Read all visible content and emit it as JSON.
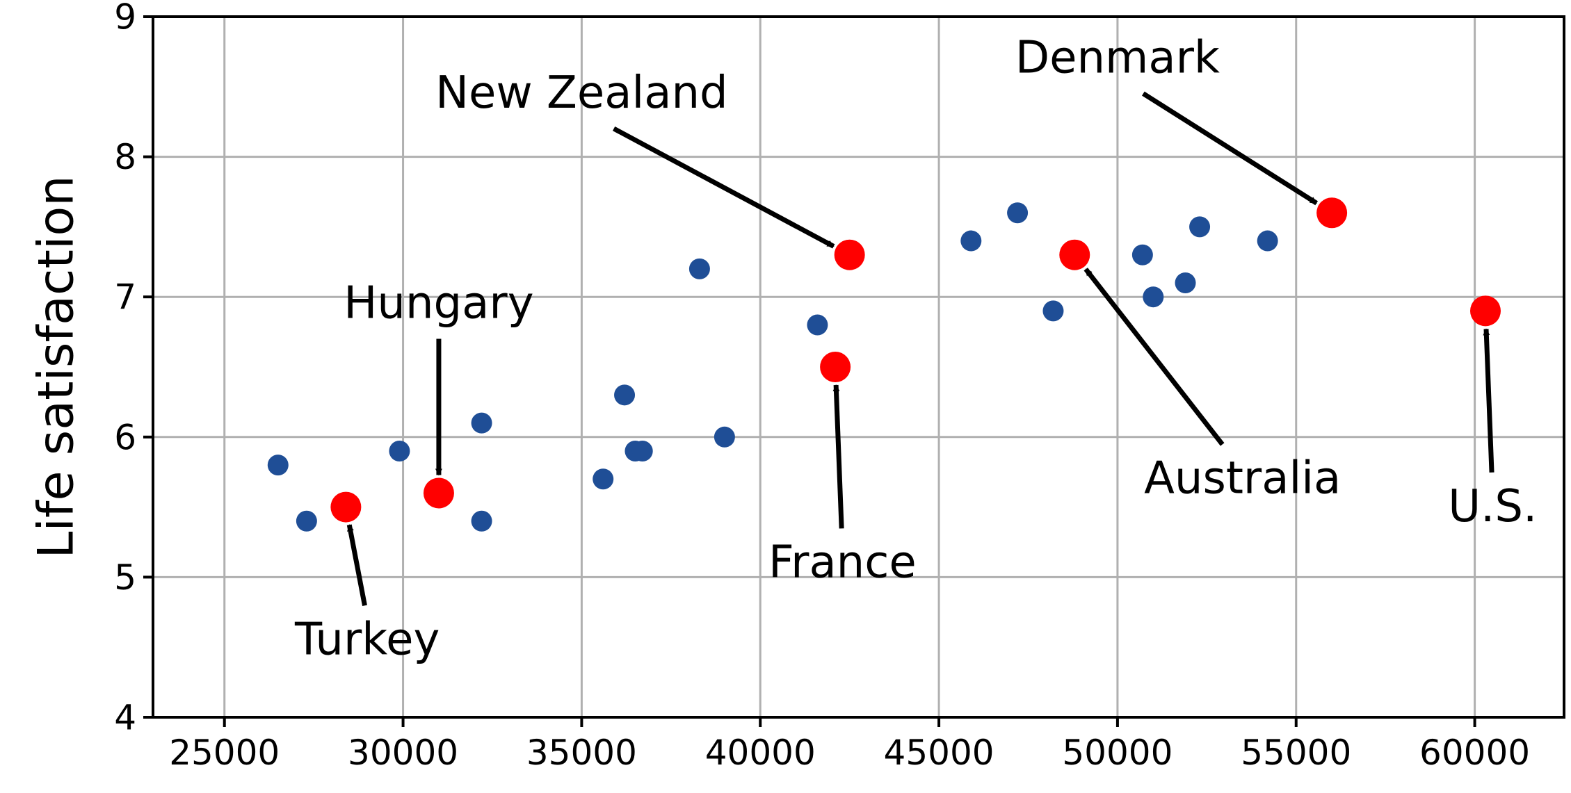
{
  "chart_data": {
    "type": "scatter",
    "title": "",
    "xlabel": "",
    "ylabel": "Life satisfaction",
    "xlim": [
      23000,
      62500
    ],
    "ylim": [
      4,
      9
    ],
    "xticks": [
      25000,
      30000,
      35000,
      40000,
      45000,
      50000,
      55000,
      60000
    ],
    "yticks": [
      4,
      5,
      6,
      7,
      8,
      9
    ],
    "grid": true,
    "colors": {
      "points": "#1f4e96",
      "highlight": "#ff0000"
    },
    "series": [
      {
        "x": [
          26500,
          27300,
          29900,
          32200,
          32200,
          35600,
          36200,
          36500,
          36700,
          38300,
          39000,
          41600,
          45900,
          47200,
          48200,
          50700,
          51000,
          51900,
          52300,
          54200
        ],
        "y": [
          5.8,
          5.4,
          5.9,
          6.1,
          5.4,
          5.7,
          6.3,
          5.9,
          5.9,
          7.2,
          6.0,
          6.8,
          7.4,
          7.6,
          6.9,
          7.3,
          7.0,
          7.1,
          7.5,
          7.4
        ]
      },
      {
        "x": [
          28400,
          31000,
          42100,
          42500,
          48800,
          56000,
          60300
        ],
        "y": [
          5.5,
          5.6,
          6.5,
          7.3,
          7.3,
          7.6,
          6.9
        ]
      }
    ],
    "annotations": [
      {
        "text": "Turkey",
        "x": 28400,
        "y": 5.5,
        "text_x": 29000,
        "text_y": 4.45
      },
      {
        "text": "Hungary",
        "x": 31000,
        "y": 5.6,
        "text_x": 31000,
        "text_y": 6.85
      },
      {
        "text": "France",
        "x": 42100,
        "y": 6.5,
        "text_x": 42300,
        "text_y": 5.0
      },
      {
        "text": "New Zealand",
        "x": 42500,
        "y": 7.3,
        "text_x": 35000,
        "text_y": 8.35
      },
      {
        "text": "Australia",
        "x": 48800,
        "y": 7.3,
        "text_x": 53500,
        "text_y": 5.6
      },
      {
        "text": "Denmark",
        "x": 56000,
        "y": 7.6,
        "text_x": 50000,
        "text_y": 8.6
      },
      {
        "text": "U.S.",
        "x": 60300,
        "y": 6.9,
        "text_x": 60500,
        "text_y": 5.4
      }
    ]
  }
}
